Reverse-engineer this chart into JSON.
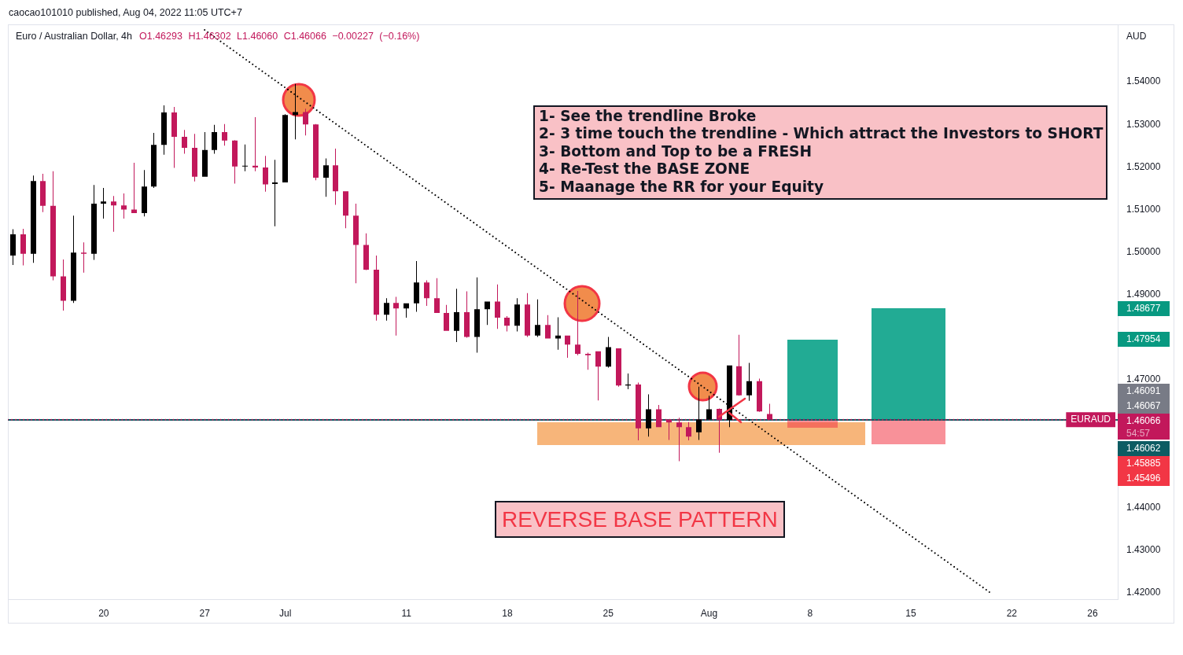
{
  "chart_data": {
    "type": "candlestick",
    "title": "Euro / Australian Dollar, 4h",
    "subtitle": "O1.46293 H1.46302 L1.46060 C1.46066 −0.00227 (−0.16%)",
    "ylabel": "AUD",
    "categories": [
      null,
      null,
      null,
      null,
      null,
      null,
      null,
      null,
      null,
      "20",
      null,
      null,
      null,
      null,
      null,
      null,
      null,
      null,
      null,
      "27",
      null,
      null,
      null,
      null,
      null,
      null,
      null,
      "Jul",
      null,
      null,
      null,
      null,
      null,
      null,
      null,
      null,
      null,
      null,
      null,
      "11",
      null,
      null,
      null,
      null,
      null,
      null,
      null,
      null,
      null,
      "18",
      null,
      null,
      null,
      null,
      null,
      null,
      null,
      null,
      null,
      "25",
      null,
      null,
      null,
      null,
      null,
      null,
      null,
      null,
      null,
      "Aug",
      null,
      null,
      null,
      null,
      null,
      null,
      null,
      null,
      null,
      "8",
      null,
      null,
      null,
      null,
      null,
      null,
      null,
      null,
      null,
      "15",
      null,
      null,
      null,
      null,
      null,
      null,
      null,
      null,
      null,
      "22",
      null,
      null,
      null,
      null,
      null,
      null,
      null,
      "26",
      null,
      null
    ],
    "ohlc": [
      [
        1.4992,
        1.5054,
        1.497,
        1.5042
      ],
      [
        1.5042,
        1.5055,
        1.4969,
        1.4996
      ],
      [
        1.4996,
        1.518,
        1.4975,
        1.5167
      ],
      [
        1.5167,
        1.5184,
        1.5094,
        1.5109
      ],
      [
        1.5109,
        1.519,
        1.4934,
        1.4943
      ],
      [
        1.4943,
        1.4983,
        1.4863,
        1.4886
      ],
      [
        1.4886,
        1.5086,
        1.4881,
        1.4999
      ],
      [
        1.4999,
        1.5023,
        1.4952,
        1.4996
      ],
      [
        1.4996,
        1.5158,
        1.4982,
        1.5114
      ],
      [
        1.5114,
        1.5151,
        1.5079,
        1.5119
      ],
      [
        1.5119,
        1.5132,
        1.5048,
        1.511
      ],
      [
        1.511,
        1.5138,
        1.5079,
        1.51
      ],
      [
        1.51,
        1.521,
        1.5092,
        1.5092
      ],
      [
        1.5092,
        1.5193,
        1.5084,
        1.5154
      ],
      [
        1.5154,
        1.528,
        1.5151,
        1.5252
      ],
      [
        1.5252,
        1.5345,
        1.5229,
        1.5328
      ],
      [
        1.5328,
        1.5341,
        1.5198,
        1.5271
      ],
      [
        1.5271,
        1.5287,
        1.5231,
        1.5245
      ],
      [
        1.5245,
        1.5278,
        1.5166,
        1.5177
      ],
      [
        1.5177,
        1.5282,
        1.5177,
        1.524
      ],
      [
        1.524,
        1.5299,
        1.5231,
        1.5282
      ],
      [
        1.5282,
        1.5301,
        1.525,
        1.5262
      ],
      [
        1.5262,
        1.5263,
        1.5161,
        1.5201
      ],
      [
        1.5201,
        1.5253,
        1.519,
        1.5203
      ],
      [
        1.5203,
        1.5317,
        1.519,
        1.5199
      ],
      [
        1.5199,
        1.5226,
        1.5142,
        1.5159
      ],
      [
        1.516,
        1.5217,
        1.5061,
        1.5164
      ],
      [
        1.5164,
        1.5324,
        1.5164,
        1.5322
      ],
      [
        1.5322,
        1.5395,
        1.5265,
        1.5329
      ],
      [
        1.5329,
        1.5337,
        1.5274,
        1.53
      ],
      [
        1.53,
        1.5301,
        1.5169,
        1.5175
      ],
      [
        1.5175,
        1.522,
        1.513,
        1.5204
      ],
      [
        1.5204,
        1.5243,
        1.5111,
        1.5143
      ],
      [
        1.5143,
        1.5143,
        1.5056,
        1.5086
      ],
      [
        1.5086,
        1.5114,
        1.4927,
        1.5017
      ],
      [
        1.5017,
        1.5044,
        1.4958,
        1.4959
      ],
      [
        1.4959,
        1.4992,
        1.4839,
        1.4853
      ],
      [
        1.4853,
        1.4892,
        1.4839,
        1.4881
      ],
      [
        1.4881,
        1.4895,
        1.4804,
        1.4868
      ],
      [
        1.4868,
        1.488,
        1.4846,
        1.488
      ],
      [
        1.488,
        1.4979,
        1.486,
        1.4929
      ],
      [
        1.4929,
        1.4934,
        1.4874,
        1.4892
      ],
      [
        1.4892,
        1.4939,
        1.4857,
        1.4857
      ],
      [
        1.4857,
        1.4876,
        1.4815,
        1.4815
      ],
      [
        1.4815,
        1.4914,
        1.4789,
        1.4859
      ],
      [
        1.4859,
        1.4908,
        1.4799,
        1.4801
      ],
      [
        1.4801,
        1.4941,
        1.4764,
        1.4866
      ],
      [
        1.4866,
        1.4884,
        1.4829,
        1.4884
      ],
      [
        1.4884,
        1.4924,
        1.482,
        1.4846
      ],
      [
        1.4846,
        1.485,
        1.4814,
        1.4827
      ],
      [
        1.4827,
        1.4892,
        1.4814,
        1.4877
      ],
      [
        1.4877,
        1.4904,
        1.4801,
        1.4804
      ],
      [
        1.4804,
        1.4889,
        1.4801,
        1.4829
      ],
      [
        1.4829,
        1.4852,
        1.4797,
        1.4797
      ],
      [
        1.4797,
        1.4847,
        1.4771,
        1.4804
      ],
      [
        1.4804,
        1.4804,
        1.4752,
        1.4783
      ],
      [
        1.4783,
        1.4909,
        1.4758,
        1.4761
      ],
      [
        1.4761,
        1.4764,
        1.4724,
        1.4758
      ],
      [
        1.4767,
        1.4767,
        1.4652,
        1.4731
      ],
      [
        1.4731,
        1.4801,
        1.4729,
        1.4777
      ],
      [
        1.4774,
        1.4774,
        1.4684,
        1.4687
      ],
      [
        1.4687,
        1.4715,
        1.4678,
        1.4689
      ],
      [
        1.4689,
        1.4694,
        1.4558,
        1.4586
      ],
      [
        1.4586,
        1.4666,
        1.4567,
        1.4631
      ],
      [
        1.4631,
        1.4641,
        1.4589,
        1.4589
      ],
      [
        1.4607,
        1.4607,
        1.4559,
        1.46
      ],
      [
        1.46,
        1.4611,
        1.4509,
        1.4589
      ],
      [
        1.4589,
        1.4601,
        1.4558,
        1.4567
      ],
      [
        1.4577,
        1.4684,
        1.4559,
        1.4607
      ],
      [
        1.4607,
        1.4663,
        1.4607,
        1.4631
      ],
      [
        1.4632,
        1.4633,
        1.4529,
        1.4606
      ],
      [
        1.4606,
        1.4734,
        1.4589,
        1.4734
      ],
      [
        1.4732,
        1.4806,
        1.4663,
        1.4664
      ],
      [
        1.4664,
        1.474,
        1.4651,
        1.4697
      ],
      [
        1.4697,
        1.4703,
        1.4625,
        1.4626
      ],
      [
        1.462,
        1.4644,
        1.4606,
        1.4607
      ],
      null,
      null,
      null,
      null,
      null,
      null,
      null,
      null,
      null,
      null,
      null,
      null,
      null,
      null,
      null,
      null,
      null,
      null,
      null,
      null,
      null,
      null,
      null,
      null,
      null,
      null,
      null,
      null,
      null,
      null,
      null,
      null,
      null,
      null
    ],
    "colors": [
      "#000000",
      "#c2185b",
      "#000000",
      "#c2185b",
      "#c2185b",
      "#c2185b",
      "#000000",
      "#c2185b",
      "#000000",
      "#000000",
      "#c2185b",
      "#c2185b",
      "#c2185b",
      "#000000",
      "#000000",
      "#000000",
      "#c2185b",
      "#c2185b",
      "#c2185b",
      "#000000",
      "#000000",
      "#c2185b",
      "#c2185b",
      "#000000",
      "#c2185b",
      "#c2185b",
      "#000000",
      "#000000",
      "#000000",
      "#c2185b",
      "#c2185b",
      "#000000",
      "#c2185b",
      "#c2185b",
      "#c2185b",
      "#c2185b",
      "#c2185b",
      "#000000",
      "#c2185b",
      "#000000",
      "#000000",
      "#c2185b",
      "#c2185b",
      "#c2185b",
      "#000000",
      "#c2185b",
      "#000000",
      "#000000",
      "#c2185b",
      "#c2185b",
      "#000000",
      "#c2185b",
      "#000000",
      "#c2185b",
      "#000000",
      "#c2185b",
      "#c2185b",
      "#c2185b",
      "#c2185b",
      "#000000",
      "#c2185b",
      "#000000",
      "#c2185b",
      "#000000",
      "#c2185b",
      "#c2185b",
      "#c2185b",
      "#c2185b",
      "#000000",
      "#000000",
      "#c2185b",
      "#000000",
      "#c2185b",
      "#000000",
      "#c2185b",
      "#c2185b",
      null,
      null,
      null,
      null,
      null,
      null,
      null,
      null,
      null,
      null,
      null,
      null,
      null,
      null,
      null,
      null,
      null,
      null,
      null,
      null,
      null,
      null,
      null,
      null,
      null,
      null,
      null,
      null,
      null,
      null,
      null,
      null,
      null,
      null
    ],
    "series": [
      {
        "type": "line",
        "color": "#000000",
        "line_style": "dotted",
        "marker": "none",
        "values": [
          null,
          null,
          null,
          null,
          null,
          null,
          null,
          null,
          null,
          null,
          null,
          null,
          null,
          null,
          null,
          null,
          null,
          null,
          null,
          1.5522,
          null,
          null,
          null,
          null,
          null,
          null,
          null,
          null,
          null,
          null,
          null,
          null,
          null,
          null,
          null,
          null,
          null,
          null,
          null,
          null,
          null,
          null,
          null,
          null,
          null,
          null,
          null,
          null,
          null,
          null,
          null,
          null,
          null,
          null,
          null,
          null,
          null,
          null,
          null,
          null,
          null,
          null,
          null,
          null,
          null,
          null,
          null,
          null,
          null,
          null,
          null,
          null,
          null,
          null,
          null,
          null,
          null,
          null,
          null,
          null,
          null,
          null,
          null,
          null,
          null,
          null,
          null,
          null,
          null,
          null,
          null,
          null,
          null,
          null,
          null,
          null,
          null,
          1.4198,
          null,
          null,
          null,
          null,
          null,
          null,
          null,
          null,
          null,
          null,
          null,
          null
        ]
      }
    ],
    "ylim": [
      1.4185,
      1.5535
    ],
    "yticks": [
      {
        "value": 1.42,
        "label": "1.42000"
      },
      {
        "value": 1.43,
        "label": "1.43000"
      },
      {
        "value": 1.44,
        "label": "1.44000"
      },
      {
        "value": 1.47,
        "label": "1.47000"
      },
      {
        "value": 1.49,
        "label": "1.49000"
      },
      {
        "value": 1.5,
        "label": "1.50000"
      },
      {
        "value": 1.51,
        "label": "1.51000"
      },
      {
        "value": 1.52,
        "label": "1.52000"
      },
      {
        "value": 1.53,
        "label": "1.53000"
      },
      {
        "value": 1.54,
        "label": "1.54000"
      }
    ],
    "ref_lines": [
      {
        "axis": "y",
        "value": 1.46062,
        "color": "#0d5c63"
      },
      {
        "axis": "y",
        "value": 1.46066,
        "label": "EURAUD",
        "color": "#c2185b",
        "line_style": "dotted"
      }
    ],
    "annotations": [
      "caocao101010 published, Aug 04, 2022 11:05 UTC+7",
      "1- See the trendline Broke\n2- 3 time touch the trendline - Which attract the Investors to SHORT\n3- Bottom and Top to be a FRESH\n4- Re-Test the BASE ZONE\n5- Maanage the RR for your Equity",
      "REVERSE BASE PATTERN",
      "1.48677",
      "1.47954",
      "1.46091",
      "1.46067",
      "1.46066",
      "54:57",
      "1.46062",
      "1.45885",
      "1.45496"
    ]
  }
}
